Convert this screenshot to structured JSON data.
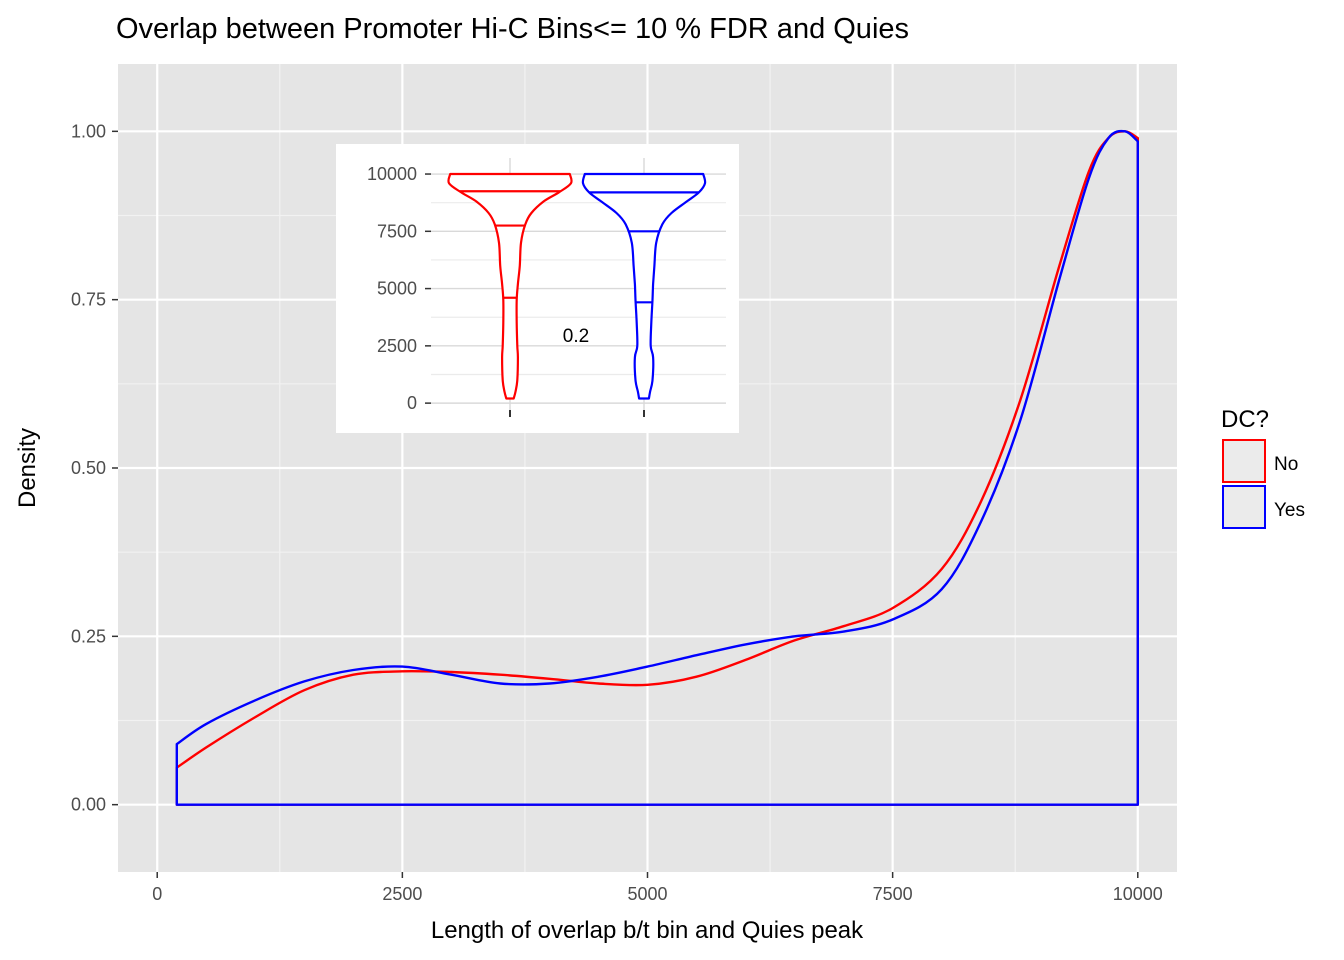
{
  "chart_data": {
    "type": "density",
    "title": "Overlap between Promoter Hi-C Bins<= 10 % FDR and Quies",
    "xlabel": "Length of overlap b/t bin and Quies peak",
    "ylabel": "Density",
    "xlim": [
      -400,
      10400
    ],
    "ylim": [
      -0.1,
      1.1
    ],
    "x_ticks": [
      0,
      2500,
      5000,
      7500,
      10000
    ],
    "x_tick_labels": [
      "0",
      "2500",
      "5000",
      "7500",
      "10000"
    ],
    "y_ticks": [
      0,
      0.25,
      0.5,
      0.75,
      1.0
    ],
    "y_tick_labels": [
      "0.00",
      "0.25",
      "0.50",
      "0.75",
      "1.00"
    ],
    "grid": true,
    "legend": {
      "title": "DC?",
      "position": "right",
      "entries": [
        {
          "label": "No",
          "color": "#ff0000"
        },
        {
          "label": "Yes",
          "color": "#0000ff"
        }
      ]
    },
    "series": [
      {
        "name": "No",
        "color": "#ff0000",
        "x": [
          200,
          500,
          1000,
          1500,
          2000,
          2500,
          3000,
          3500,
          4000,
          4500,
          5000,
          5500,
          6000,
          6500,
          7000,
          7500,
          8000,
          8400,
          8800,
          9200,
          9500,
          9700,
          9870,
          10000
        ],
        "y": [
          0.055,
          0.085,
          0.13,
          0.17,
          0.193,
          0.198,
          0.197,
          0.193,
          0.187,
          0.18,
          0.178,
          0.19,
          0.215,
          0.244,
          0.265,
          0.292,
          0.35,
          0.45,
          0.6,
          0.8,
          0.94,
          0.99,
          1.0,
          0.99
        ]
      },
      {
        "name": "Yes",
        "color": "#0000ff",
        "x": [
          200,
          500,
          1000,
          1500,
          2000,
          2500,
          3000,
          3500,
          4000,
          4500,
          5000,
          5500,
          6000,
          6500,
          7000,
          7500,
          8000,
          8400,
          8800,
          9200,
          9500,
          9700,
          9870,
          10000
        ],
        "y": [
          0.09,
          0.12,
          0.155,
          0.183,
          0.2,
          0.205,
          0.193,
          0.18,
          0.18,
          0.19,
          0.205,
          0.222,
          0.238,
          0.25,
          0.257,
          0.275,
          0.32,
          0.42,
          0.57,
          0.78,
          0.93,
          0.99,
          1.0,
          0.985
        ]
      }
    ],
    "inset": {
      "type": "violin",
      "annotation": "0.2",
      "ylim": [
        -300,
        10700
      ],
      "y_ticks": [
        0,
        2500,
        5000,
        7500,
        10000
      ],
      "y_tick_labels": [
        "0",
        "2500",
        "5000",
        "7500",
        "10000"
      ],
      "groups": [
        {
          "name": "No",
          "color": "#ff0000",
          "quantiles": [
            4600,
            7750,
            9250
          ],
          "profile_y": [
            200,
            500,
            1000,
            2000,
            2500,
            3500,
            4500,
            5200,
            6000,
            7000,
            7800,
            8300,
            8800,
            9200,
            9600,
            10000
          ],
          "profile_w": [
            0.06,
            0.09,
            0.12,
            0.13,
            0.12,
            0.11,
            0.11,
            0.13,
            0.16,
            0.18,
            0.25,
            0.35,
            0.55,
            0.8,
            1.0,
            0.98
          ]
        },
        {
          "name": "Yes",
          "color": "#0000ff",
          "quantiles": [
            4400,
            7500,
            9200
          ],
          "profile_y": [
            200,
            500,
            1000,
            2000,
            2500,
            3500,
            4500,
            5200,
            6000,
            7000,
            7800,
            8300,
            8800,
            9200,
            9600,
            10000
          ],
          "profile_w": [
            0.08,
            0.1,
            0.14,
            0.15,
            0.11,
            0.12,
            0.14,
            0.15,
            0.17,
            0.2,
            0.3,
            0.45,
            0.7,
            0.9,
            1.0,
            0.97
          ]
        }
      ]
    }
  }
}
